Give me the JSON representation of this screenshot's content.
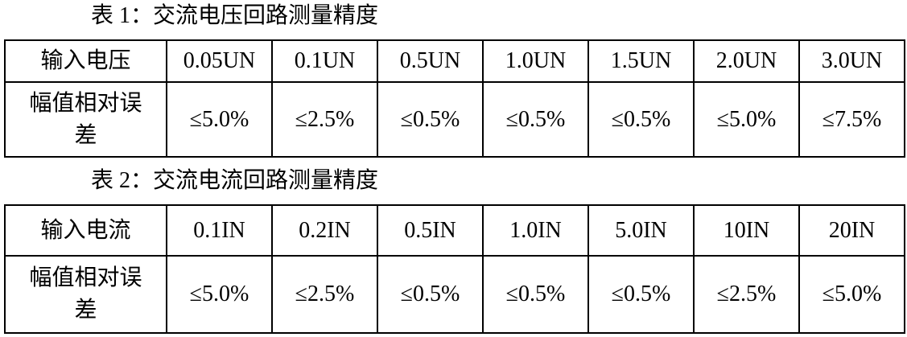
{
  "tables": [
    {
      "title": "表 1：交流电压回路测量精度",
      "rows": [
        {
          "header": "输入电压",
          "cells": [
            "0.05UN",
            "0.1UN",
            "0.5UN",
            "1.0UN",
            "1.5UN",
            "2.0UN",
            "3.0UN"
          ]
        },
        {
          "header": "幅值相对误差",
          "cells": [
            "≤5.0%",
            "≤2.5%",
            "≤0.5%",
            "≤0.5%",
            "≤0.5%",
            "≤5.0%",
            "≤7.5%"
          ]
        }
      ]
    },
    {
      "title": "表 2：交流电流回路测量精度",
      "rows": [
        {
          "header": "输入电流",
          "cells": [
            "0.1IN",
            "0.2IN",
            "0.5IN",
            "1.0IN",
            "5.0IN",
            "10IN",
            "20IN"
          ]
        },
        {
          "header": "幅值相对误差",
          "cells": [
            "≤5.0%",
            "≤2.5%",
            "≤0.5%",
            "≤0.5%",
            "≤0.5%",
            "≤2.5%",
            "≤5.0%"
          ]
        }
      ]
    }
  ],
  "colors": {
    "text": "#000000",
    "background": "#ffffff",
    "border": "#000000"
  }
}
